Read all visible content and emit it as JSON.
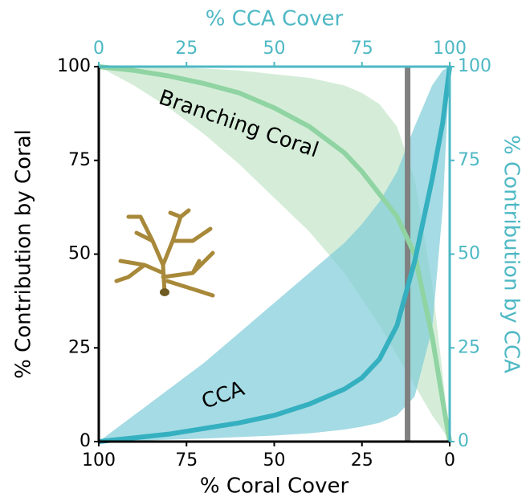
{
  "chart_data": {
    "type": "line",
    "xlabel": "% Coral Cover",
    "x2label": "% CCA Cover",
    "ylabel": "% Contribution by Coral",
    "y2label": "% Contribution by CCA",
    "x": [
      100,
      90,
      80,
      70,
      60,
      50,
      40,
      30,
      25,
      20,
      15,
      10,
      5,
      2,
      0
    ],
    "xlim": [
      100,
      0
    ],
    "xticks": [
      100,
      75,
      50,
      25,
      0
    ],
    "x2lim": [
      0,
      100
    ],
    "x2ticks": [
      0,
      25,
      50,
      75,
      100
    ],
    "ylim": [
      0,
      100
    ],
    "yticks": [
      0,
      25,
      50,
      75,
      100
    ],
    "y2lim": [
      0,
      100
    ],
    "y2ticks": [
      0,
      25,
      50,
      75,
      100
    ],
    "axis2_color": "#4db8c4",
    "vline": {
      "x": 12,
      "color": "#808080"
    },
    "series": [
      {
        "name": "Branching Coral",
        "color": "#8fd4a2",
        "band_color": "#c3e6c8",
        "values": [
          100,
          99,
          97.5,
          95.5,
          93,
          89,
          84,
          77,
          72,
          66,
          60,
          50,
          28,
          11,
          0
        ],
        "upper": [
          100,
          100,
          99.8,
          99.5,
          99,
          98,
          97,
          95,
          93,
          90,
          84,
          70,
          42,
          18,
          0
        ],
        "lower": [
          100,
          95,
          89,
          82,
          74,
          65,
          56,
          45,
          38,
          31,
          23,
          15,
          7,
          3,
          0
        ]
      },
      {
        "name": "CCA",
        "color": "#35b0c0",
        "band_color": "#7fccd8",
        "axis": "y2",
        "values": [
          0,
          1,
          2,
          3.5,
          5,
          7,
          10,
          14,
          17,
          22,
          31,
          48,
          70,
          85,
          100
        ],
        "upper": [
          0,
          7,
          14,
          21,
          29,
          37,
          45,
          53,
          58,
          64,
          72,
          84,
          95,
          99,
          100
        ],
        "lower": [
          0,
          0.2,
          0.5,
          0.8,
          1.2,
          1.6,
          2.2,
          3.2,
          4,
          5,
          7,
          12,
          30,
          62,
          100
        ]
      }
    ]
  }
}
